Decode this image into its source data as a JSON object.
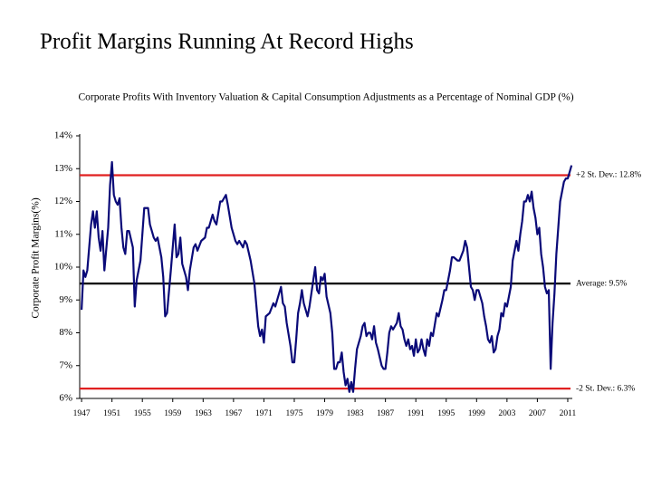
{
  "chart_data": {
    "type": "line",
    "title": "Profit Margins Running At Record Highs",
    "subtitle": "Corporate Profits With Inventory Valuation & Capital Consumption Adjustments as a Percentage of Nominal GDP (%)",
    "y_label": "Corporate Profit Margins(%)",
    "color": "#0a0a78",
    "x": [
      1947,
      1947.25,
      1947.5,
      1947.75,
      1948.25,
      1948.5,
      1948.75,
      1949,
      1949.25,
      1949.5,
      1949.75,
      1950,
      1950.5,
      1950.75,
      1951,
      1951.25,
      1951.5,
      1951.75,
      1952,
      1952.25,
      1952.5,
      1952.75,
      1953,
      1953.25,
      1953.75,
      1954,
      1954.25,
      1954.75,
      1955.25,
      1955.75,
      1956,
      1956.5,
      1956.75,
      1957,
      1957.5,
      1957.75,
      1958,
      1958.25,
      1958.75,
      1959.25,
      1959.5,
      1959.75,
      1960,
      1960.25,
      1960.75,
      1961,
      1961.25,
      1961.75,
      1962,
      1962.25,
      1962.75,
      1963.25,
      1963.5,
      1963.75,
      1964.25,
      1964.5,
      1964.75,
      1965.25,
      1965.5,
      1965.75,
      1966,
      1966.25,
      1966.75,
      1967.25,
      1967.5,
      1967.75,
      1968.25,
      1968.5,
      1968.75,
      1969.25,
      1969.75,
      1970.25,
      1970.5,
      1970.75,
      1971,
      1971.25,
      1971.75,
      1972.25,
      1972.5,
      1972.75,
      1973,
      1973.25,
      1973.5,
      1973.75,
      1974,
      1974.5,
      1974.75,
      1975,
      1975.25,
      1975.5,
      1975.75,
      1976,
      1976.25,
      1976.5,
      1976.75,
      1977,
      1977.5,
      1977.75,
      1978,
      1978.25,
      1978.5,
      1978.75,
      1979,
      1979.25,
      1979.75,
      1980,
      1980.25,
      1980.5,
      1980.75,
      1981,
      1981.25,
      1981.5,
      1981.75,
      1982,
      1982.25,
      1982.5,
      1982.75,
      1983,
      1983.25,
      1983.75,
      1984,
      1984.25,
      1984.5,
      1984.75,
      1985,
      1985.25,
      1985.5,
      1985.75,
      1986,
      1986.5,
      1986.75,
      1987,
      1987.25,
      1987.5,
      1987.75,
      1988,
      1988.5,
      1988.75,
      1989,
      1989.25,
      1989.5,
      1989.75,
      1990,
      1990.25,
      1990.5,
      1990.75,
      1991,
      1991.25,
      1991.5,
      1991.75,
      1992,
      1992.25,
      1992.5,
      1992.75,
      1993,
      1993.25,
      1993.75,
      1994,
      1994.5,
      1994.75,
      1995,
      1995.5,
      1995.75,
      1996,
      1996.5,
      1996.75,
      1997.25,
      1997.5,
      1997.75,
      1998,
      1998.25,
      1998.5,
      1998.75,
      1999,
      1999.25,
      1999.5,
      1999.75,
      2000,
      2000.25,
      2000.5,
      2000.75,
      2001,
      2001.25,
      2001.5,
      2001.75,
      2002,
      2002.25,
      2002.5,
      2002.75,
      2003,
      2003.25,
      2003.5,
      2003.75,
      2004,
      2004.25,
      2004.5,
      2004.75,
      2005,
      2005.25,
      2005.5,
      2005.75,
      2006,
      2006.25,
      2006.5,
      2006.75,
      2007,
      2007.25,
      2007.5,
      2007.75,
      2008,
      2008.25,
      2008.5,
      2008.75,
      2009,
      2009.25,
      2009.5,
      2009.75,
      2010,
      2010.25,
      2010.5,
      2010.75,
      2011,
      2011.25,
      2011.5
    ],
    "values": [
      8.7,
      9.9,
      9.7,
      9.9,
      11.3,
      11.7,
      11.2,
      11.7,
      10.9,
      10.5,
      11.1,
      9.9,
      11.2,
      12.5,
      13.2,
      12.2,
      12.0,
      11.9,
      12.1,
      11.2,
      10.6,
      10.4,
      11.1,
      11.1,
      10.6,
      8.8,
      9.6,
      10.2,
      11.8,
      11.8,
      11.3,
      10.9,
      10.8,
      10.9,
      10.3,
      9.7,
      8.5,
      8.6,
      9.9,
      11.3,
      10.3,
      10.4,
      10.9,
      10.1,
      9.7,
      9.3,
      9.9,
      10.6,
      10.7,
      10.5,
      10.8,
      10.9,
      11.2,
      11.2,
      11.6,
      11.4,
      11.3,
      12.0,
      12.0,
      12.1,
      12.2,
      11.9,
      11.2,
      10.8,
      10.7,
      10.8,
      10.6,
      10.8,
      10.7,
      10.2,
      9.5,
      8.2,
      7.9,
      8.1,
      7.7,
      8.5,
      8.6,
      8.9,
      8.8,
      9.0,
      9.2,
      9.4,
      8.9,
      8.8,
      8.3,
      7.6,
      7.1,
      7.1,
      7.8,
      8.6,
      8.9,
      9.3,
      8.9,
      8.7,
      8.5,
      8.8,
      9.6,
      10.0,
      9.3,
      9.2,
      9.7,
      9.6,
      9.8,
      9.1,
      8.6,
      8.0,
      6.9,
      6.9,
      7.1,
      7.1,
      7.4,
      6.8,
      6.4,
      6.6,
      6.2,
      6.5,
      6.2,
      6.9,
      7.5,
      7.9,
      8.2,
      8.3,
      7.9,
      8.0,
      8.0,
      7.8,
      8.2,
      7.7,
      7.5,
      7.0,
      6.9,
      6.9,
      7.4,
      8.0,
      8.2,
      8.1,
      8.3,
      8.6,
      8.2,
      8.1,
      7.8,
      7.6,
      7.8,
      7.5,
      7.6,
      7.3,
      7.8,
      7.4,
      7.5,
      7.8,
      7.5,
      7.3,
      7.8,
      7.6,
      8.0,
      7.9,
      8.6,
      8.5,
      9.0,
      9.3,
      9.3,
      9.9,
      10.3,
      10.3,
      10.2,
      10.2,
      10.5,
      10.8,
      10.6,
      10.0,
      9.4,
      9.3,
      9.0,
      9.3,
      9.3,
      9.1,
      8.9,
      8.5,
      8.2,
      7.8,
      7.7,
      7.9,
      7.4,
      7.5,
      7.9,
      8.1,
      8.6,
      8.5,
      8.9,
      8.8,
      9.1,
      9.4,
      10.2,
      10.5,
      10.8,
      10.5,
      11.0,
      11.4,
      12.0,
      12.0,
      12.2,
      12.0,
      12.3,
      11.8,
      11.5,
      11.0,
      11.2,
      10.4,
      10.0,
      9.4,
      9.2,
      9.3,
      6.9,
      8.3,
      9.2,
      10.4,
      11.2,
      12.0,
      12.3,
      12.6,
      12.7,
      12.7,
      12.9,
      13.1
    ],
    "xlim": [
      1946.75,
      2011.6
    ],
    "xticks": [
      1947,
      1951,
      1955,
      1959,
      1963,
      1967,
      1971,
      1975,
      1979,
      1983,
      1987,
      1991,
      1995,
      1999,
      2003,
      2007,
      2011
    ],
    "ylim": [
      6,
      14
    ],
    "yticks": [
      {
        "value": 6,
        "label": "6%"
      },
      {
        "value": 7,
        "label": "7%"
      },
      {
        "value": 8,
        "label": "8%"
      },
      {
        "value": 9,
        "label": "9%"
      },
      {
        "value": 10,
        "label": "10%"
      },
      {
        "value": 11,
        "label": "11%"
      },
      {
        "value": 12,
        "label": "12%"
      },
      {
        "value": 13,
        "label": "13%"
      },
      {
        "value": 14,
        "label": "14%"
      }
    ],
    "reference_lines": [
      {
        "value": 12.8,
        "label": "+2 St. Dev.: 12.8%",
        "color": "#e02020"
      },
      {
        "value": 9.5,
        "label": "Average: 9.5%",
        "color": "#000000"
      },
      {
        "value": 6.3,
        "label": "-2 St. Dev.: 6.3%",
        "color": "#e02020"
      }
    ]
  }
}
